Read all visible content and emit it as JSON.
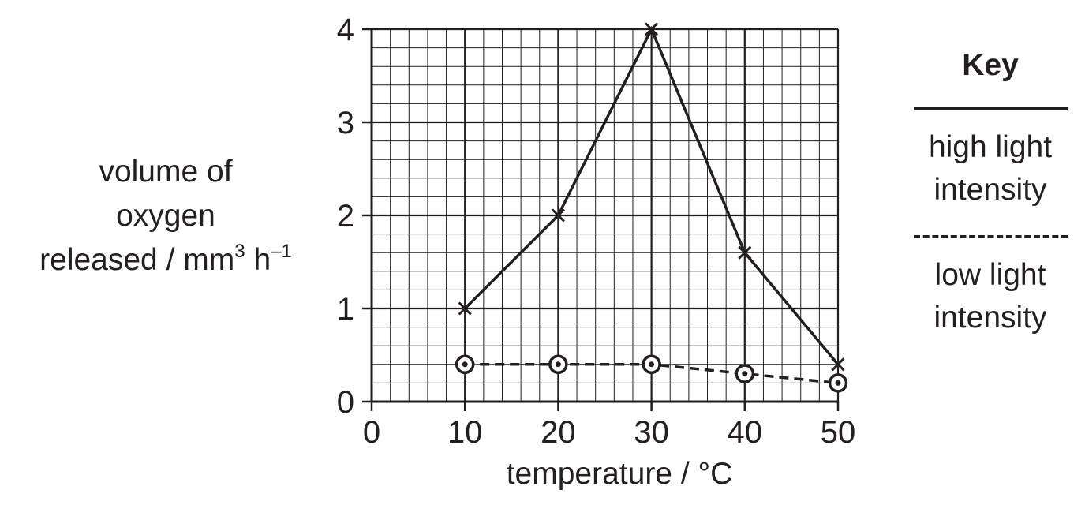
{
  "chart_data": {
    "type": "line",
    "xlabel_text": "temperature",
    "xlabel_unit": "°C",
    "ylabel_lines": [
      "volume of",
      "oxygen"
    ],
    "ylabel_last_prefix": "released",
    "ylabel_unit_base": "mm",
    "ylabel_unit_exp": "3",
    "ylabel_unit_tail": "h",
    "ylabel_unit_tail_exp": "–1",
    "xlim": [
      0,
      50
    ],
    "ylim": [
      0,
      4
    ],
    "x_ticks": [
      0,
      10,
      20,
      30,
      40,
      50
    ],
    "y_ticks": [
      0,
      1,
      2,
      3,
      4
    ],
    "grid": true,
    "legend_position": "right",
    "legend_title": "Key",
    "x": [
      10,
      20,
      30,
      40,
      50
    ],
    "series": [
      {
        "name": "high light intensity",
        "label_lines": [
          "high light",
          "intensity"
        ],
        "style": "solid",
        "marker": "cross",
        "values": [
          1.0,
          2.0,
          4.0,
          1.6,
          0.4
        ]
      },
      {
        "name": "low light intensity",
        "label_lines": [
          "low light",
          "intensity"
        ],
        "style": "dashed",
        "marker": "circle-dot",
        "values": [
          0.4,
          0.4,
          0.4,
          0.3,
          0.2
        ]
      }
    ]
  },
  "colors": {
    "ink": "#231f20",
    "background": "#ffffff"
  }
}
